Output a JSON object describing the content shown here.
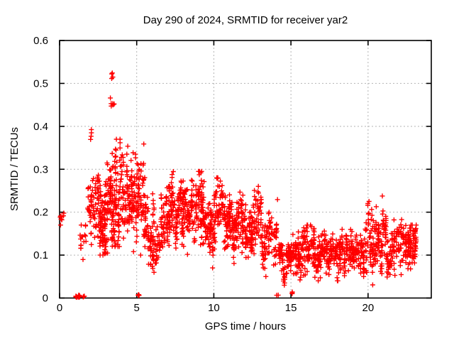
{
  "chart_data": {
    "type": "scatter",
    "title": "Day 290 of 2024, SRMTID for receiver yar2",
    "xlabel": "GPS time / hours",
    "ylabel": "SRMTID / TECUs",
    "xlim": [
      0,
      24.1
    ],
    "ylim": [
      0,
      0.6
    ],
    "xtick_labels": [
      "0",
      "5",
      "10",
      "15",
      "20"
    ],
    "xtick_values": [
      0,
      5,
      10,
      15,
      20
    ],
    "ytick_labels": [
      "0",
      "0.1",
      "0.2",
      "0.3",
      "0.4",
      "0.5",
      "0.6"
    ],
    "ytick_values": [
      0,
      0.1,
      0.2,
      0.3,
      0.4,
      0.5,
      0.6
    ],
    "grid": true,
    "legend": "none",
    "marker": {
      "shape": "plus",
      "color": "#ff0000",
      "size": 7
    },
    "grid_color": "#b4b4b4",
    "border_color": "#000000",
    "background": "#ffffff",
    "approx_point_count": 2300,
    "point_clusters_format": [
      "hour_start",
      "hour_end",
      "num_points",
      "value_min",
      "value_max"
    ],
    "point_clusters": [
      [
        0.03,
        0.28,
        8,
        0.17,
        0.205
      ],
      [
        1.0,
        1.33,
        26,
        0.001,
        0.009
      ],
      [
        1.3,
        1.75,
        16,
        0.07,
        0.17
      ],
      [
        1.5,
        1.68,
        3,
        0.002,
        0.007
      ],
      [
        1.8,
        2.4,
        48,
        0.1,
        0.31
      ],
      [
        1.95,
        2.1,
        4,
        0.33,
        0.41
      ],
      [
        2.4,
        3.2,
        125,
        0.1,
        0.315
      ],
      [
        3.2,
        3.65,
        85,
        0.12,
        0.385
      ],
      [
        3.28,
        3.55,
        8,
        0.43,
        0.48
      ],
      [
        3.3,
        3.5,
        4,
        0.51,
        0.53
      ],
      [
        3.6,
        4.6,
        115,
        0.12,
        0.37
      ],
      [
        4.6,
        5.65,
        130,
        0.1,
        0.375
      ],
      [
        5.05,
        5.25,
        4,
        0.002,
        0.008
      ],
      [
        5.65,
        6.15,
        55,
        0.06,
        0.26
      ],
      [
        6.15,
        6.55,
        25,
        0.04,
        0.17
      ],
      [
        6.55,
        7.2,
        70,
        0.07,
        0.26
      ],
      [
        7.2,
        8.35,
        140,
        0.1,
        0.315
      ],
      [
        8.35,
        9.4,
        120,
        0.09,
        0.295
      ],
      [
        9.4,
        10.0,
        65,
        0.07,
        0.22
      ],
      [
        10.0,
        11.1,
        120,
        0.09,
        0.28
      ],
      [
        11.1,
        12.1,
        110,
        0.08,
        0.26
      ],
      [
        12.1,
        13.1,
        100,
        0.06,
        0.275
      ],
      [
        13.1,
        14.1,
        85,
        0.05,
        0.2
      ],
      [
        14.05,
        14.2,
        2,
        0.002,
        0.01
      ],
      [
        14.1,
        14.2,
        1,
        0.228,
        0.236
      ],
      [
        14.2,
        15.1,
        90,
        0.03,
        0.15
      ],
      [
        15.0,
        15.15,
        3,
        0.006,
        0.018
      ],
      [
        15.1,
        16.1,
        100,
        0.02,
        0.17
      ],
      [
        16.1,
        17.1,
        95,
        0.04,
        0.17
      ],
      [
        17.1,
        18.1,
        90,
        0.04,
        0.16
      ],
      [
        18.1,
        19.0,
        90,
        0.04,
        0.16
      ],
      [
        19.0,
        19.8,
        75,
        0.05,
        0.17
      ],
      [
        19.8,
        20.35,
        55,
        0.06,
        0.24
      ],
      [
        20.3,
        20.38,
        1,
        0.027,
        0.033
      ],
      [
        20.35,
        21.2,
        85,
        0.05,
        0.225
      ],
      [
        20.85,
        20.95,
        1,
        0.235,
        0.245
      ],
      [
        21.2,
        22.35,
        95,
        0.03,
        0.2
      ],
      [
        22.35,
        23.15,
        95,
        0.05,
        0.17
      ]
    ]
  }
}
